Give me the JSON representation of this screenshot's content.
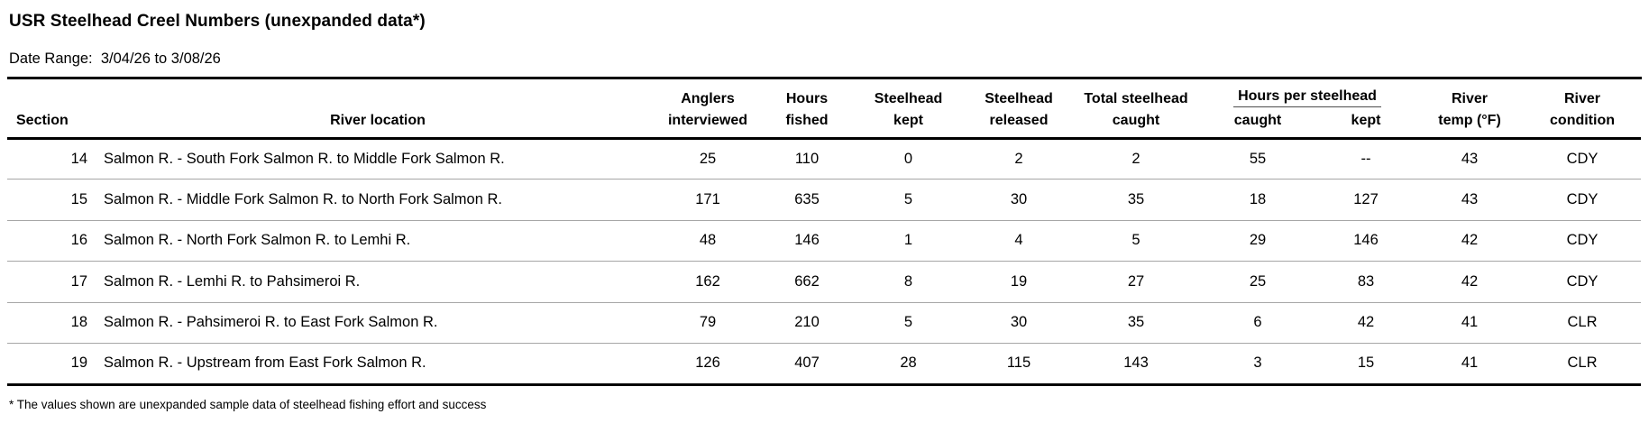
{
  "report": {
    "title": "USR Steelhead Creel Numbers (unexpanded data*)",
    "date_range": {
      "label": "Date Range:",
      "value": "3/04/26 to 3/08/26"
    },
    "footnote": "* The values shown are unexpanded sample data of steelhead fishing effort and success"
  },
  "table": {
    "column_ids": [
      "section",
      "river_location",
      "anglers_interviewed",
      "hours_fished",
      "steelhead_kept",
      "steelhead_released",
      "total_steelhead_caught",
      "hours_per_steelhead_caught",
      "hours_per_steelhead_kept",
      "river_temp",
      "river_condition"
    ],
    "headers": {
      "section": "Section",
      "river_location": "River location",
      "anglers_line1": "Anglers",
      "anglers_line2": "interviewed",
      "hours_line1": "Hours",
      "hours_line2": "fished",
      "kept_line1": "Steelhead",
      "kept_line2": "kept",
      "released_line1": "Steelhead",
      "released_line2": "released",
      "total_line1": "Total steelhead",
      "total_line2": "caught",
      "hours_per_steelhead_group": "Hours per steelhead",
      "hps_caught": "caught",
      "hps_kept": "kept",
      "temp_line1": "River",
      "temp_line2": "temp (°F)",
      "condition_line1": "River",
      "condition_line2": "condition"
    },
    "rows": [
      {
        "section": "14",
        "river_location": "Salmon R. - South Fork Salmon R. to Middle Fork Salmon R.",
        "anglers_interviewed": "25",
        "hours_fished": "110",
        "steelhead_kept": "0",
        "steelhead_released": "2",
        "total_steelhead_caught": "2",
        "hours_per_steelhead_caught": "55",
        "hours_per_steelhead_kept": "--",
        "river_temp": "43",
        "river_condition": "CDY"
      },
      {
        "section": "15",
        "river_location": "Salmon R. - Middle Fork Salmon R. to North Fork Salmon R.",
        "anglers_interviewed": "171",
        "hours_fished": "635",
        "steelhead_kept": "5",
        "steelhead_released": "30",
        "total_steelhead_caught": "35",
        "hours_per_steelhead_caught": "18",
        "hours_per_steelhead_kept": "127",
        "river_temp": "43",
        "river_condition": "CDY"
      },
      {
        "section": "16",
        "river_location": "Salmon R. - North Fork Salmon R. to Lemhi R.",
        "anglers_interviewed": "48",
        "hours_fished": "146",
        "steelhead_kept": "1",
        "steelhead_released": "4",
        "total_steelhead_caught": "5",
        "hours_per_steelhead_caught": "29",
        "hours_per_steelhead_kept": "146",
        "river_temp": "42",
        "river_condition": "CDY"
      },
      {
        "section": "17",
        "river_location": "Salmon R. - Lemhi R. to Pahsimeroi R.",
        "anglers_interviewed": "162",
        "hours_fished": "662",
        "steelhead_kept": "8",
        "steelhead_released": "19",
        "total_steelhead_caught": "27",
        "hours_per_steelhead_caught": "25",
        "hours_per_steelhead_kept": "83",
        "river_temp": "42",
        "river_condition": "CDY"
      },
      {
        "section": "18",
        "river_location": "Salmon R. - Pahsimeroi R. to East Fork Salmon R.",
        "anglers_interviewed": "79",
        "hours_fished": "210",
        "steelhead_kept": "5",
        "steelhead_released": "30",
        "total_steelhead_caught": "35",
        "hours_per_steelhead_caught": "6",
        "hours_per_steelhead_kept": "42",
        "river_temp": "41",
        "river_condition": "CLR"
      },
      {
        "section": "19",
        "river_location": "Salmon R. - Upstream from East Fork Salmon R.",
        "anglers_interviewed": "126",
        "hours_fished": "407",
        "steelhead_kept": "28",
        "steelhead_released": "115",
        "total_steelhead_caught": "143",
        "hours_per_steelhead_caught": "3",
        "hours_per_steelhead_kept": "15",
        "river_temp": "41",
        "river_condition": "CLR"
      }
    ]
  }
}
